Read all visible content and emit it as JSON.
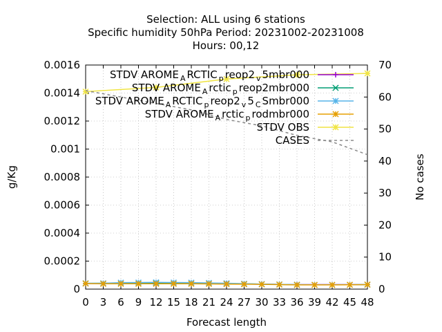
{
  "chart_data": {
    "type": "line",
    "title": [
      "Selection: ALL using     6 stations",
      "Specific humidity 50hPa   Period: 20231002-20231008",
      "Hours:  00,12"
    ],
    "xlabel": "Forecast length",
    "ylabel": "g/Kg",
    "y2label": "No cases",
    "xlim": [
      0,
      48
    ],
    "ylim": [
      0,
      0.0016
    ],
    "y2lim": [
      0,
      70
    ],
    "xticks": [
      "0",
      "3",
      "6",
      "9",
      "12",
      "15",
      "18",
      "21",
      "24",
      "27",
      "30",
      "33",
      "36",
      "39",
      "42",
      "45",
      "48"
    ],
    "yticks": [
      "0",
      "0.0002",
      "0.0004",
      "0.0006",
      "0.0008",
      "0.001",
      "0.0012",
      "0.0014",
      "0.0016"
    ],
    "y2ticks": [
      "0",
      "10",
      "20",
      "30",
      "40",
      "50",
      "60",
      "70"
    ],
    "grid": true,
    "legend_position": "top-right",
    "series": [
      {
        "label": {
          "text": "STDV AROME",
          "sub1": "A",
          "mid1": "RCTIC",
          "sub2": "p",
          "mid2": "reop2",
          "sub3": "v",
          "tail": "5mbr000"
        },
        "color": "#9400d3",
        "marker": "plus",
        "axis": "y1",
        "x": [
          0,
          12,
          24,
          36,
          48
        ],
        "y": [
          4e-05,
          4e-05,
          3.8e-05,
          3.2e-05,
          3.2e-05
        ]
      },
      {
        "label": {
          "text": "STDV AROME",
          "sub1": "A",
          "mid1": "rctic",
          "sub2": "p",
          "tail": "reop2mbr000"
        },
        "color": "#009e73",
        "marker": "x",
        "axis": "y1",
        "x": [
          0,
          12,
          24,
          36,
          48
        ],
        "y": [
          4.1e-05,
          4.4e-05,
          4e-05,
          3.1e-05,
          3.2e-05
        ]
      },
      {
        "label": {
          "text": "STDV AROME",
          "sub1": "A",
          "mid1": "RCTIC",
          "sub2": "p",
          "mid2": "reop2",
          "sub3": "v",
          "mid3": "5",
          "sub4": "C",
          "tail": "Smbr000"
        },
        "color": "#56b4e9",
        "marker": "star",
        "axis": "y1",
        "x": [
          0,
          3,
          6,
          9,
          12,
          15,
          18,
          21,
          24,
          27,
          30,
          33,
          36,
          39,
          42,
          45,
          48
        ],
        "y": [
          4.1e-05,
          4.2e-05,
          4.6e-05,
          4.7e-05,
          4.8e-05,
          4.7e-05,
          4.6e-05,
          4.4e-05,
          4.2e-05,
          3.9e-05,
          3.6e-05,
          3.4e-05,
          3.2e-05,
          3.1e-05,
          3.1e-05,
          3.1e-05,
          3.2e-05
        ]
      },
      {
        "label": {
          "text": "STDV AROME",
          "sub1": "A",
          "mid1": "rctic",
          "sub2": "p",
          "tail": "rodmbr000"
        },
        "color": "#e69f00",
        "marker": "star",
        "axis": "y1",
        "x": [
          0,
          3,
          6,
          9,
          12,
          15,
          18,
          21,
          24,
          27,
          30,
          33,
          36,
          39,
          42,
          45,
          48
        ],
        "y": [
          4e-05,
          3.8e-05,
          3.8e-05,
          3.8e-05,
          3.8e-05,
          3.8e-05,
          3.8e-05,
          3.7e-05,
          3.6e-05,
          3.5e-05,
          3.4e-05,
          3.2e-05,
          3e-05,
          3e-05,
          3e-05,
          3.1e-05,
          3.2e-05
        ]
      },
      {
        "label": {
          "text": "STDV OBS"
        },
        "color": "#f0e442",
        "marker": "star",
        "axis": "y1",
        "x": [
          0,
          12,
          24,
          36,
          48
        ],
        "y": [
          0.00141,
          0.00144,
          0.0015,
          0.00153,
          0.00154
        ]
      },
      {
        "label": {
          "text": "CASES"
        },
        "color": "#888888",
        "marker": "none",
        "dashed": true,
        "axis": "y2",
        "x": [
          0,
          6,
          12,
          18,
          24,
          30,
          36,
          42,
          48
        ],
        "y": [
          62,
          60,
          58,
          56,
          53,
          51,
          48,
          46,
          42
        ]
      }
    ]
  }
}
